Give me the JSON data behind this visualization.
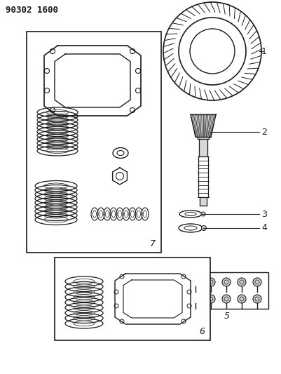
{
  "title": "90302 1600",
  "background_color": "#ffffff",
  "line_color": "#1a1a1a",
  "title_fontsize": 9,
  "fig_width": 4.02,
  "fig_height": 5.33,
  "dpi": 100
}
